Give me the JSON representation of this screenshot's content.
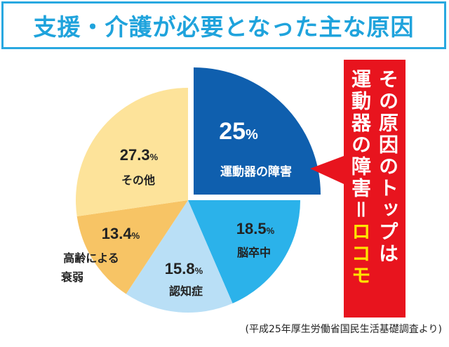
{
  "title": "支援・介護が必要となった主な原因",
  "source_note": "(平成25年厚生労働省国民生活基礎調査より)",
  "callout": {
    "line1": "その原因のトップは",
    "line2_main": "運動器の障害＝",
    "line2_highlight": "ロコモ",
    "bg_color": "#e8141e",
    "highlight_color": "#ffe400"
  },
  "chart_data": {
    "type": "pie",
    "title": "支援・介護が必要となった主な原因",
    "start": "12 o'clock, clockwise",
    "slices": [
      {
        "label": "運動器の障害",
        "value": 25,
        "value_label": "25%",
        "color": "#0f5fae",
        "exploded": true
      },
      {
        "label": "脳卒中",
        "value": 18.5,
        "value_label": "18.5%",
        "color": "#2bb2ea"
      },
      {
        "label": "認知症",
        "value": 15.8,
        "value_label": "15.8%",
        "color": "#b9dff6"
      },
      {
        "label": "高齢による衰弱",
        "value": 13.4,
        "value_label": "13.4%",
        "color": "#f7c465"
      },
      {
        "label": "その他",
        "value": 27.3,
        "value_label": "27.3%",
        "color": "#fde39a"
      }
    ]
  }
}
